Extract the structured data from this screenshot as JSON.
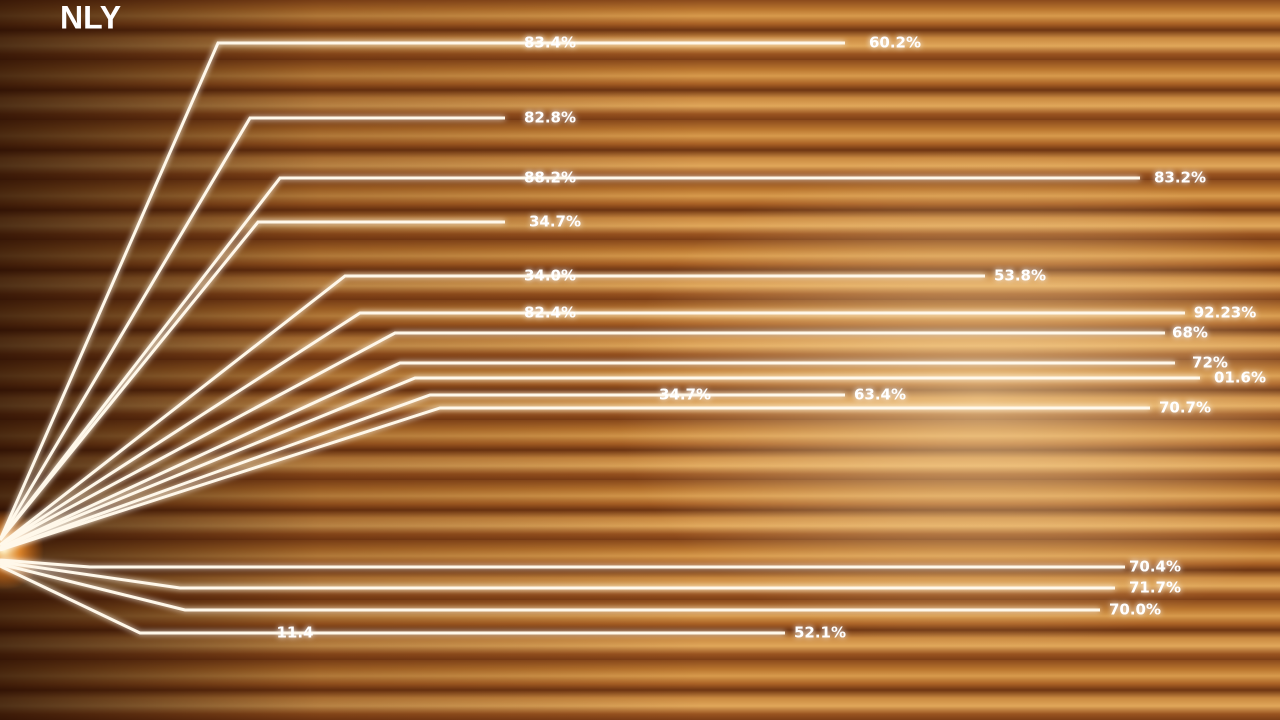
{
  "header": {
    "title": "NLY"
  },
  "lines": [
    {
      "labels": [
        "83.4%",
        "60.2%"
      ]
    },
    {
      "labels": [
        "82.8%"
      ]
    },
    {
      "labels": [
        "88.2%",
        "83.2%"
      ]
    },
    {
      "labels": [
        "34.7%"
      ]
    },
    {
      "labels": [
        "34.0%",
        "53.8%"
      ]
    },
    {
      "labels": [
        "82.4%",
        "92.23%"
      ]
    },
    {
      "labels": [
        "68%"
      ]
    },
    {
      "labels": [
        "72%"
      ]
    },
    {
      "labels": [
        "01.6%"
      ]
    },
    {
      "labels": [
        "34.7%",
        "63.4%"
      ]
    },
    {
      "labels": [
        "70.7%"
      ]
    },
    {
      "labels": [
        "70.4%"
      ]
    },
    {
      "labels": [
        "71.7%"
      ]
    },
    {
      "labels": [
        "70.0%"
      ]
    },
    {
      "labels": [
        "11.4",
        "52.1%"
      ]
    }
  ]
}
